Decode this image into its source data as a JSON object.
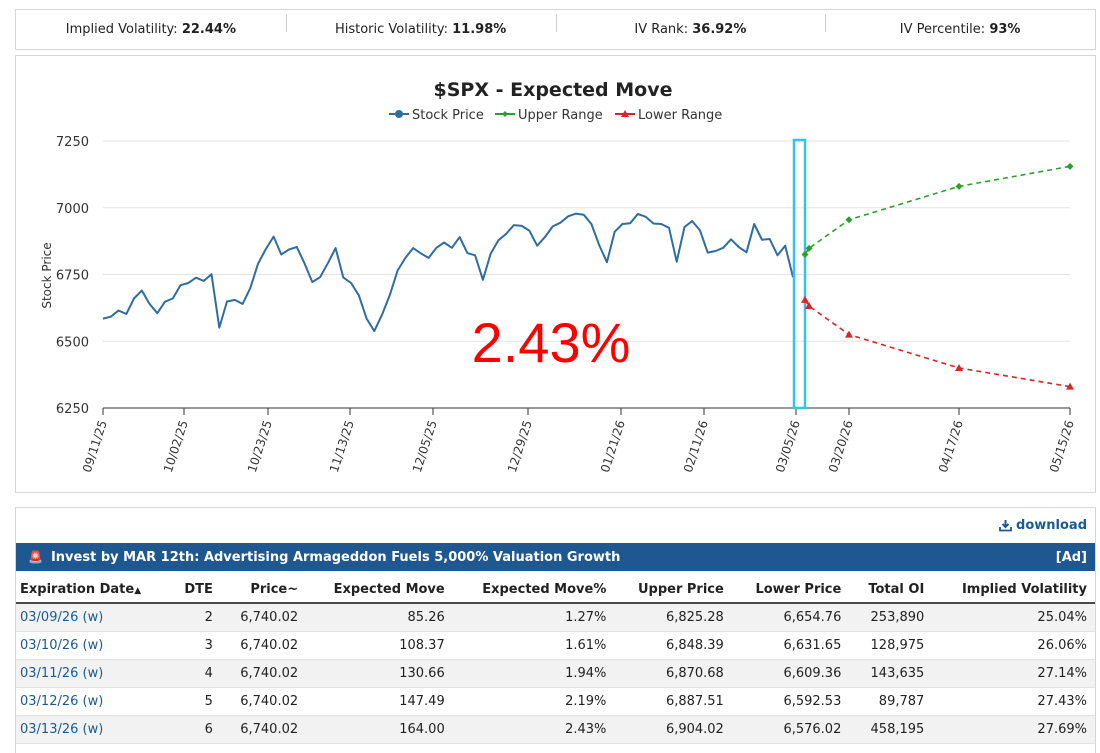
{
  "stats": [
    {
      "label": "Implied Volatility:",
      "value": "22.44%"
    },
    {
      "label": "Historic Volatility:",
      "value": "11.98%"
    },
    {
      "label": "IV Rank:",
      "value": "36.92%"
    },
    {
      "label": "IV Percentile:",
      "value": "93%"
    }
  ],
  "chart_data": {
    "type": "line",
    "title": "$SPX - Expected Move",
    "ylabel": "Stock Price",
    "xlabel": "",
    "ylim": [
      6250,
      7250
    ],
    "yticks": [
      "6250",
      "6500",
      "6750",
      "7000",
      "7250"
    ],
    "x_tick_labels": [
      "09/11/25",
      "10/02/25",
      "10/23/25",
      "11/13/25",
      "12/05/25",
      "12/29/25",
      "01/21/26",
      "02/11/26",
      "03/05/26",
      "03/20/26",
      "04/17/26",
      "05/15/26"
    ],
    "legend": [
      "Stock Price",
      "Upper Range",
      "Lower Range"
    ],
    "overlay_text": "2.43%",
    "colors": {
      "stock": "#2e6da4",
      "upper": "#2ca02c",
      "lower": "#d62728",
      "highlight": "#33c3f0",
      "overlay": "#ff0000"
    },
    "stock_series_sampled": [
      6585,
      6592,
      6615,
      6602,
      6660,
      6690,
      6640,
      6605,
      6648,
      6660,
      6710,
      6718,
      6738,
      6726,
      6751,
      6551,
      6649,
      6655,
      6640,
      6699,
      6791,
      6845,
      6892,
      6825,
      6844,
      6853,
      6791,
      6722,
      6740,
      6792,
      6849,
      6739,
      6718,
      6672,
      6585,
      6538,
      6600,
      6674,
      6765,
      6812,
      6849,
      6829,
      6812,
      6850,
      6870,
      6850,
      6890,
      6830,
      6822,
      6730,
      6827,
      6878,
      6902,
      6935,
      6932,
      6914,
      6858,
      6890,
      6930,
      6944,
      6968,
      6978,
      6974,
      6939,
      6860,
      6796,
      6910,
      6939,
      6942,
      6977,
      6966,
      6941,
      6939,
      6925,
      6798,
      6928,
      6950,
      6915,
      6832,
      6838,
      6850,
      6882,
      6853,
      6833,
      6939,
      6880,
      6883,
      6822,
      6858,
      6740
    ],
    "upper_range": [
      {
        "date": "03/06/26",
        "value": 6825
      },
      {
        "date": "03/09/26",
        "value": 6848
      },
      {
        "date": "03/20/26",
        "value": 6955
      },
      {
        "date": "04/17/26",
        "value": 7080
      },
      {
        "date": "05/15/26",
        "value": 7155
      }
    ],
    "lower_range": [
      {
        "date": "03/06/26",
        "value": 6655
      },
      {
        "date": "03/09/26",
        "value": 6632
      },
      {
        "date": "03/20/26",
        "value": 6525
      },
      {
        "date": "04/17/26",
        "value": 6400
      },
      {
        "date": "05/15/26",
        "value": 6330
      }
    ]
  },
  "table": {
    "download_label": "download",
    "ad_text": "Invest by MAR 12th: Advertising Armageddon Fuels 5,000% Valuation Growth",
    "ad_tag": "[Ad]",
    "headers": [
      "Expiration Date",
      "DTE",
      "Price~",
      "Expected Move",
      "Expected Move%",
      "Upper Price",
      "Lower Price",
      "Total OI",
      "Implied Volatility"
    ],
    "rows": [
      [
        "03/09/26 (w)",
        "2",
        "6,740.02",
        "85.26",
        "1.27%",
        "6,825.28",
        "6,654.76",
        "253,890",
        "25.04%"
      ],
      [
        "03/10/26 (w)",
        "3",
        "6,740.02",
        "108.37",
        "1.61%",
        "6,848.39",
        "6,631.65",
        "128,975",
        "26.06%"
      ],
      [
        "03/11/26 (w)",
        "4",
        "6,740.02",
        "130.66",
        "1.94%",
        "6,870.68",
        "6,609.36",
        "143,635",
        "27.14%"
      ],
      [
        "03/12/26 (w)",
        "5",
        "6,740.02",
        "147.49",
        "2.19%",
        "6,887.51",
        "6,592.53",
        "89,787",
        "27.43%"
      ],
      [
        "03/13/26 (w)",
        "6",
        "6,740.02",
        "164.00",
        "2.43%",
        "6,904.02",
        "6,576.02",
        "458,195",
        "27.69%"
      ]
    ]
  }
}
